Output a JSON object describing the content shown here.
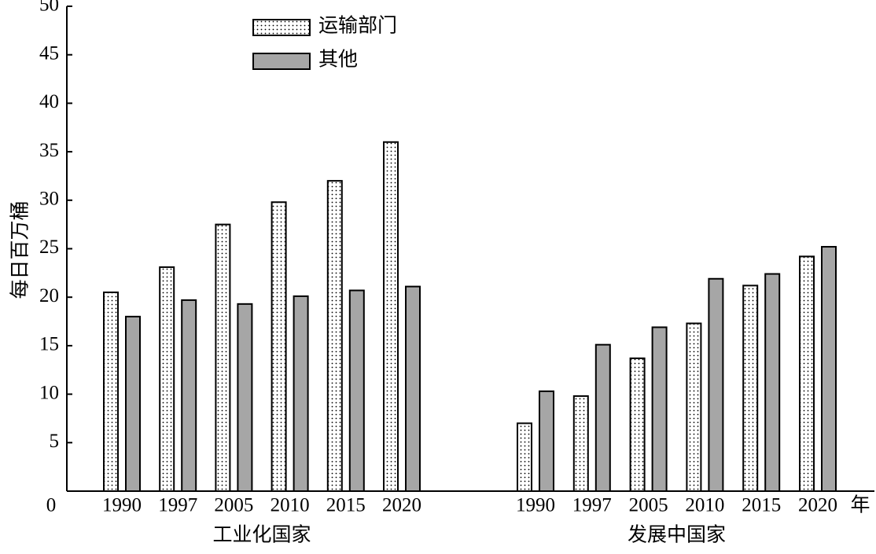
{
  "chart_data": {
    "type": "bar",
    "y_label": "每日百万桶",
    "x_unit": "年",
    "category_groups": [
      "工业化国家",
      "发展中国家"
    ],
    "categories": [
      "1990",
      "1997",
      "2005",
      "2010",
      "2015",
      "2020",
      "1990",
      "1997",
      "2005",
      "2010",
      "2015",
      "2020"
    ],
    "series": [
      {
        "name": "运输部门",
        "color": "#ffffff",
        "hatch": "dots",
        "values": [
          20.5,
          23.1,
          27.5,
          29.8,
          32,
          36,
          7,
          9.8,
          13.7,
          17.3,
          21.2,
          24.2
        ]
      },
      {
        "name": "其他",
        "color": "#a6a6a6",
        "values": [
          18,
          19.7,
          19.3,
          20.1,
          20.7,
          21.1,
          10.3,
          15.1,
          16.9,
          21.9,
          22.4,
          25.2
        ]
      }
    ],
    "ylim": [
      0,
      50
    ],
    "yticks": [
      0,
      5,
      10,
      15,
      20,
      25,
      30,
      35,
      40,
      45,
      50
    ],
    "legend": "upper-left"
  }
}
